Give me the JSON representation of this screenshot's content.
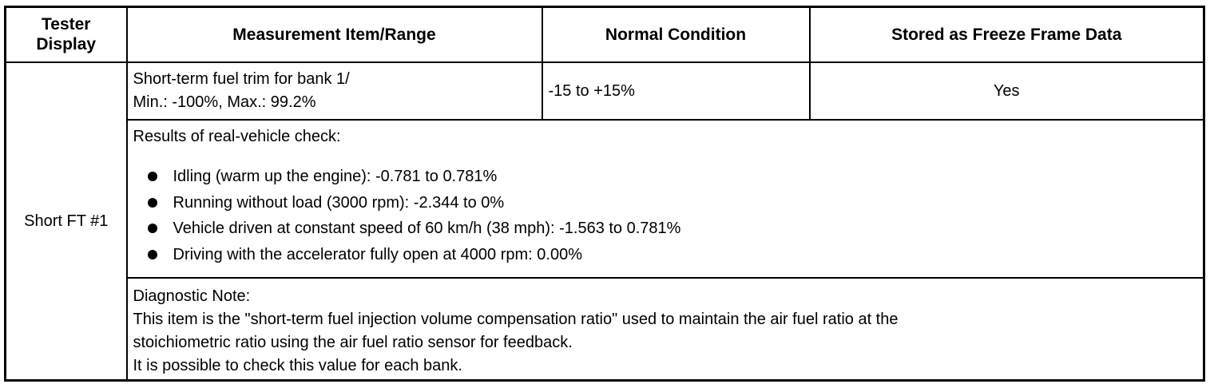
{
  "header": {
    "tester_display": "Tester Display",
    "measurement": "Measurement Item/Range",
    "normal_condition": "Normal Condition",
    "freeze_frame": "Stored as Freeze Frame Data"
  },
  "item": {
    "tester_display": "Short FT #1",
    "measurement_line1": "Short-term fuel trim for bank 1/",
    "measurement_line2": "Min.: -100%, Max.: 99.2%",
    "normal_condition": "-15 to +15%",
    "freeze_frame": "Yes"
  },
  "check": {
    "intro": "Results of real-vehicle check:",
    "items": [
      "Idling (warm up the engine): -0.781 to 0.781%",
      "Running without load (3000 rpm): -2.344 to 0%",
      "Vehicle driven at constant speed of 60 km/h (38 mph): -1.563 to 0.781%",
      "Driving with the accelerator fully open at 4000 rpm: 0.00%"
    ]
  },
  "note": {
    "title": "Diagnostic Note:",
    "line1": "This item is the \"short-term fuel injection volume compensation ratio\" used to maintain the air fuel ratio at the",
    "line2": "stoichiometric ratio using the air fuel ratio sensor for feedback.",
    "line3": "It is possible to check this value for each bank."
  }
}
